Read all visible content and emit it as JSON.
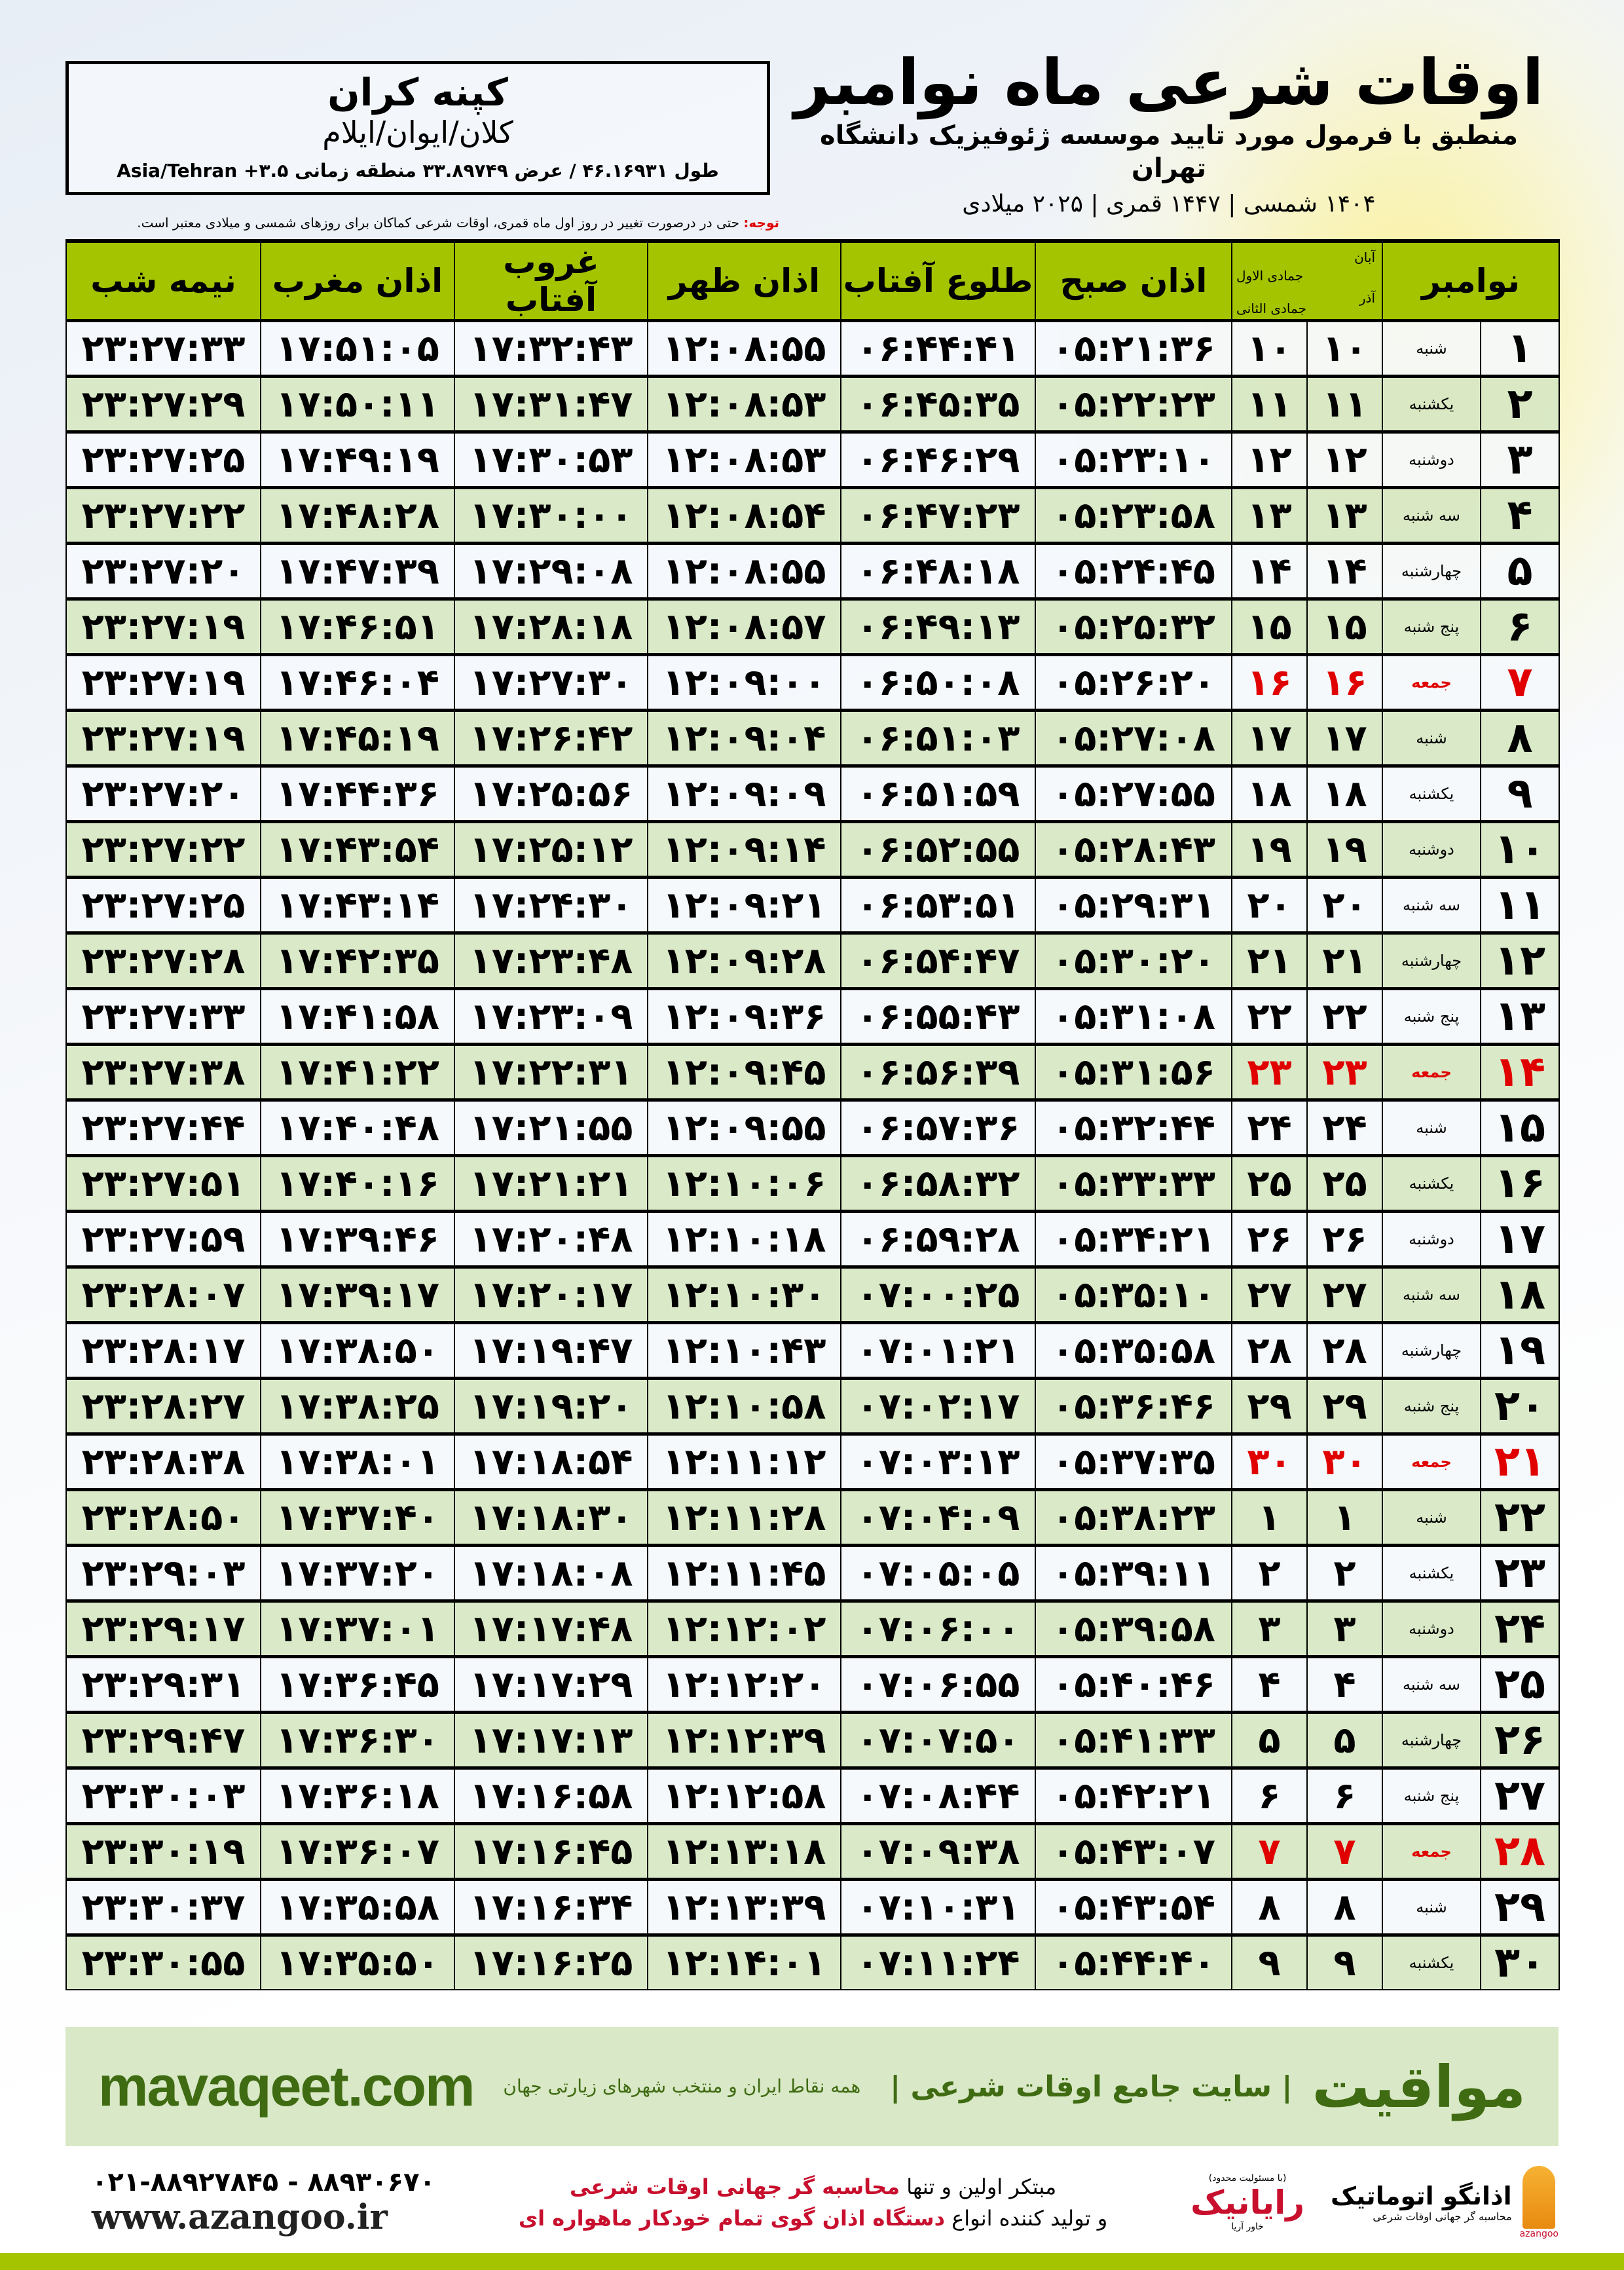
{
  "location": {
    "name": "کپنه کران",
    "path": "کلان/ایوان/ایلام",
    "coords": "طول ۴۶.۱۶۹۳۱ / عرض ۳۳.۸۹۷۴۹ منطقه زمانی ۳.۵+ Asia/Tehran"
  },
  "header": {
    "title": "اوقات شرعی ماه نوامبر",
    "subtitle": "منطبق با فرمول مورد تایید موسسه ژئوفیزیک دانشگاه تهران",
    "years": "۱۴۰۴ شمسی | ۱۴۴۷ قمری | ۲۰۲۵ میلادی"
  },
  "note": {
    "label": "توجه:",
    "text": " حتی در درصورت تغییر در روز اول ماه قمری، اوقات شرعی کماکان برای روزهای شمسی و میلادی معتبر است."
  },
  "colors": {
    "header_green": "#a4c400",
    "row_green": "#d8e8c4",
    "holiday_red": "#e00000",
    "brand_green": "#3f6b12"
  },
  "table": {
    "headers": {
      "month": "نوامبر",
      "shamsi_top": "آبان",
      "shamsi_bottom": "آذر",
      "qamari_top": "جمادی الاول",
      "qamari_bottom": "جمادی الثانی",
      "sobh": "اذان صبح",
      "tolu": "طلوع آفتاب",
      "zohr": "اذان ظهر",
      "ghorub": "غروب آفتاب",
      "maghreb": "اذان مغرب",
      "nime_shab": "نیمه شب"
    },
    "rows": [
      [
        "۱",
        "شنبه",
        "۱۰",
        "۱۰",
        "۰۵:۲۱:۳۶",
        "۰۶:۴۴:۴۱",
        "۱۲:۰۸:۵۵",
        "۱۷:۳۲:۴۳",
        "۱۷:۵۱:۰۵",
        "۲۳:۲۷:۳۳"
      ],
      [
        "۲",
        "یکشنبه",
        "۱۱",
        "۱۱",
        "۰۵:۲۲:۲۳",
        "۰۶:۴۵:۳۵",
        "۱۲:۰۸:۵۳",
        "۱۷:۳۱:۴۷",
        "۱۷:۵۰:۱۱",
        "۲۳:۲۷:۲۹"
      ],
      [
        "۳",
        "دوشنبه",
        "۱۲",
        "۱۲",
        "۰۵:۲۳:۱۰",
        "۰۶:۴۶:۲۹",
        "۱۲:۰۸:۵۳",
        "۱۷:۳۰:۵۳",
        "۱۷:۴۹:۱۹",
        "۲۳:۲۷:۲۵"
      ],
      [
        "۴",
        "سه شنبه",
        "۱۳",
        "۱۳",
        "۰۵:۲۳:۵۸",
        "۰۶:۴۷:۲۳",
        "۱۲:۰۸:۵۴",
        "۱۷:۳۰:۰۰",
        "۱۷:۴۸:۲۸",
        "۲۳:۲۷:۲۲"
      ],
      [
        "۵",
        "چهارشنبه",
        "۱۴",
        "۱۴",
        "۰۵:۲۴:۴۵",
        "۰۶:۴۸:۱۸",
        "۱۲:۰۸:۵۵",
        "۱۷:۲۹:۰۸",
        "۱۷:۴۷:۳۹",
        "۲۳:۲۷:۲۰"
      ],
      [
        "۶",
        "پنج شنبه",
        "۱۵",
        "۱۵",
        "۰۵:۲۵:۳۲",
        "۰۶:۴۹:۱۳",
        "۱۲:۰۸:۵۷",
        "۱۷:۲۸:۱۸",
        "۱۷:۴۶:۵۱",
        "۲۳:۲۷:۱۹"
      ],
      [
        "۷",
        "جمعه",
        "۱۶",
        "۱۶",
        "۰۵:۲۶:۲۰",
        "۰۶:۵۰:۰۸",
        "۱۲:۰۹:۰۰",
        "۱۷:۲۷:۳۰",
        "۱۷:۴۶:۰۴",
        "۲۳:۲۷:۱۹"
      ],
      [
        "۸",
        "شنبه",
        "۱۷",
        "۱۷",
        "۰۵:۲۷:۰۸",
        "۰۶:۵۱:۰۳",
        "۱۲:۰۹:۰۴",
        "۱۷:۲۶:۴۲",
        "۱۷:۴۵:۱۹",
        "۲۳:۲۷:۱۹"
      ],
      [
        "۹",
        "یکشنبه",
        "۱۸",
        "۱۸",
        "۰۵:۲۷:۵۵",
        "۰۶:۵۱:۵۹",
        "۱۲:۰۹:۰۹",
        "۱۷:۲۵:۵۶",
        "۱۷:۴۴:۳۶",
        "۲۳:۲۷:۲۰"
      ],
      [
        "۱۰",
        "دوشنبه",
        "۱۹",
        "۱۹",
        "۰۵:۲۸:۴۳",
        "۰۶:۵۲:۵۵",
        "۱۲:۰۹:۱۴",
        "۱۷:۲۵:۱۲",
        "۱۷:۴۳:۵۴",
        "۲۳:۲۷:۲۲"
      ],
      [
        "۱۱",
        "سه شنبه",
        "۲۰",
        "۲۰",
        "۰۵:۲۹:۳۱",
        "۰۶:۵۳:۵۱",
        "۱۲:۰۹:۲۱",
        "۱۷:۲۴:۳۰",
        "۱۷:۴۳:۱۴",
        "۲۳:۲۷:۲۵"
      ],
      [
        "۱۲",
        "چهارشنبه",
        "۲۱",
        "۲۱",
        "۰۵:۳۰:۲۰",
        "۰۶:۵۴:۴۷",
        "۱۲:۰۹:۲۸",
        "۱۷:۲۳:۴۸",
        "۱۷:۴۲:۳۵",
        "۲۳:۲۷:۲۸"
      ],
      [
        "۱۳",
        "پنج شنبه",
        "۲۲",
        "۲۲",
        "۰۵:۳۱:۰۸",
        "۰۶:۵۵:۴۳",
        "۱۲:۰۹:۳۶",
        "۱۷:۲۳:۰۹",
        "۱۷:۴۱:۵۸",
        "۲۳:۲۷:۳۳"
      ],
      [
        "۱۴",
        "جمعه",
        "۲۳",
        "۲۳",
        "۰۵:۳۱:۵۶",
        "۰۶:۵۶:۳۹",
        "۱۲:۰۹:۴۵",
        "۱۷:۲۲:۳۱",
        "۱۷:۴۱:۲۲",
        "۲۳:۲۷:۳۸"
      ],
      [
        "۱۵",
        "شنبه",
        "۲۴",
        "۲۴",
        "۰۵:۳۲:۴۴",
        "۰۶:۵۷:۳۶",
        "۱۲:۰۹:۵۵",
        "۱۷:۲۱:۵۵",
        "۱۷:۴۰:۴۸",
        "۲۳:۲۷:۴۴"
      ],
      [
        "۱۶",
        "یکشنبه",
        "۲۵",
        "۲۵",
        "۰۵:۳۳:۳۳",
        "۰۶:۵۸:۳۲",
        "۱۲:۱۰:۰۶",
        "۱۷:۲۱:۲۱",
        "۱۷:۴۰:۱۶",
        "۲۳:۲۷:۵۱"
      ],
      [
        "۱۷",
        "دوشنبه",
        "۲۶",
        "۲۶",
        "۰۵:۳۴:۲۱",
        "۰۶:۵۹:۲۸",
        "۱۲:۱۰:۱۸",
        "۱۷:۲۰:۴۸",
        "۱۷:۳۹:۴۶",
        "۲۳:۲۷:۵۹"
      ],
      [
        "۱۸",
        "سه شنبه",
        "۲۷",
        "۲۷",
        "۰۵:۳۵:۱۰",
        "۰۷:۰۰:۲۵",
        "۱۲:۱۰:۳۰",
        "۱۷:۲۰:۱۷",
        "۱۷:۳۹:۱۷",
        "۲۳:۲۸:۰۷"
      ],
      [
        "۱۹",
        "چهارشنبه",
        "۲۸",
        "۲۸",
        "۰۵:۳۵:۵۸",
        "۰۷:۰۱:۲۱",
        "۱۲:۱۰:۴۳",
        "۱۷:۱۹:۴۷",
        "۱۷:۳۸:۵۰",
        "۲۳:۲۸:۱۷"
      ],
      [
        "۲۰",
        "پنج شنبه",
        "۲۹",
        "۲۹",
        "۰۵:۳۶:۴۶",
        "۰۷:۰۲:۱۷",
        "۱۲:۱۰:۵۸",
        "۱۷:۱۹:۲۰",
        "۱۷:۳۸:۲۵",
        "۲۳:۲۸:۲۷"
      ],
      [
        "۲۱",
        "جمعه",
        "۳۰",
        "۳۰",
        "۰۵:۳۷:۳۵",
        "۰۷:۰۳:۱۳",
        "۱۲:۱۱:۱۲",
        "۱۷:۱۸:۵۴",
        "۱۷:۳۸:۰۱",
        "۲۳:۲۸:۳۸"
      ],
      [
        "۲۲",
        "شنبه",
        "۱",
        "۱",
        "۰۵:۳۸:۲۳",
        "۰۷:۰۴:۰۹",
        "۱۲:۱۱:۲۸",
        "۱۷:۱۸:۳۰",
        "۱۷:۳۷:۴۰",
        "۲۳:۲۸:۵۰"
      ],
      [
        "۲۳",
        "یکشنبه",
        "۲",
        "۲",
        "۰۵:۳۹:۱۱",
        "۰۷:۰۵:۰۵",
        "۱۲:۱۱:۴۵",
        "۱۷:۱۸:۰۸",
        "۱۷:۳۷:۲۰",
        "۲۳:۲۹:۰۳"
      ],
      [
        "۲۴",
        "دوشنبه",
        "۳",
        "۳",
        "۰۵:۳۹:۵۸",
        "۰۷:۰۶:۰۰",
        "۱۲:۱۲:۰۲",
        "۱۷:۱۷:۴۸",
        "۱۷:۳۷:۰۱",
        "۲۳:۲۹:۱۷"
      ],
      [
        "۲۵",
        "سه شنبه",
        "۴",
        "۴",
        "۰۵:۴۰:۴۶",
        "۰۷:۰۶:۵۵",
        "۱۲:۱۲:۲۰",
        "۱۷:۱۷:۲۹",
        "۱۷:۳۶:۴۵",
        "۲۳:۲۹:۳۱"
      ],
      [
        "۲۶",
        "چهارشنبه",
        "۵",
        "۵",
        "۰۵:۴۱:۳۳",
        "۰۷:۰۷:۵۰",
        "۱۲:۱۲:۳۹",
        "۱۷:۱۷:۱۳",
        "۱۷:۳۶:۳۰",
        "۲۳:۲۹:۴۷"
      ],
      [
        "۲۷",
        "پنج شنبه",
        "۶",
        "۶",
        "۰۵:۴۲:۲۱",
        "۰۷:۰۸:۴۴",
        "۱۲:۱۲:۵۸",
        "۱۷:۱۶:۵۸",
        "۱۷:۳۶:۱۸",
        "۲۳:۳۰:۰۳"
      ],
      [
        "۲۸",
        "جمعه",
        "۷",
        "۷",
        "۰۵:۴۳:۰۷",
        "۰۷:۰۹:۳۸",
        "۱۲:۱۳:۱۸",
        "۱۷:۱۶:۴۵",
        "۱۷:۳۶:۰۷",
        "۲۳:۳۰:۱۹"
      ],
      [
        "۲۹",
        "شنبه",
        "۸",
        "۸",
        "۰۵:۴۳:۵۴",
        "۰۷:۱۰:۳۱",
        "۱۲:۱۳:۳۹",
        "۱۷:۱۶:۳۴",
        "۱۷:۳۵:۵۸",
        "۲۳:۳۰:۳۷"
      ],
      [
        "۳۰",
        "یکشنبه",
        "۹",
        "۹",
        "۰۵:۴۴:۴۰",
        "۰۷:۱۱:۲۴",
        "۱۲:۱۴:۰۱",
        "۱۷:۱۶:۲۵",
        "۱۷:۳۵:۵۰",
        "۲۳:۳۰:۵۵"
      ]
    ]
  },
  "footer": {
    "site": "mavaqeet.com",
    "tagline": "همه نقاط ایران و منتخب شهرهای زیارتی جهان",
    "slogan": "| سایت جامع اوقات شرعی |",
    "brand": "مواقیت",
    "phone": "۰۲۱-۸۸۹۲۷۸۴۵ - ۸۸۹۳۰۶۷۰",
    "www": "www.azangoo.ir",
    "promo_line1_a": "مبتکر اولین و تنها ",
    "promo_line1_b": "محاسبه گر جهانی اوقات شرعی",
    "promo_line2_a": "و تولید کننده انواع ",
    "promo_line2_b": "دستگاه اذان گوی تمام خودکار ماهواره ای",
    "rayanik_note": "(با مسئولیت محدود)",
    "rayanik": "رایانیک",
    "rayanik_sub": "خاور آریا",
    "azangoo_name": "اذانگو اتوماتیک",
    "azangoo_sub": "محاسبه گر جهانی اوقات شرعی",
    "azangoo_en": "azangoo"
  }
}
